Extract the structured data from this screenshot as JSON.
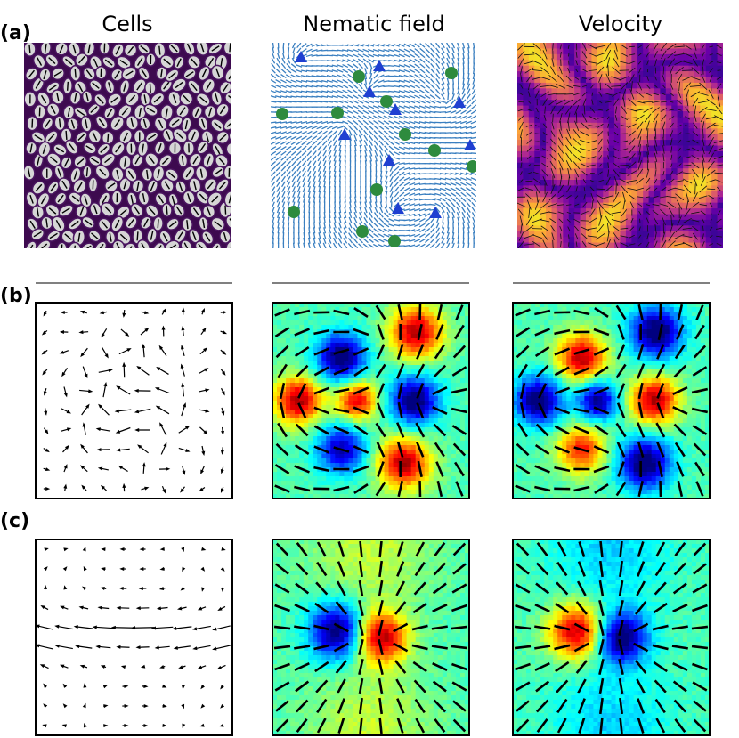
{
  "figure": {
    "panel_labels": [
      "(a)",
      "(b)",
      "(c)"
    ],
    "column_titles": [
      "Cells",
      "Nematic field",
      "Velocity"
    ]
  }
}
